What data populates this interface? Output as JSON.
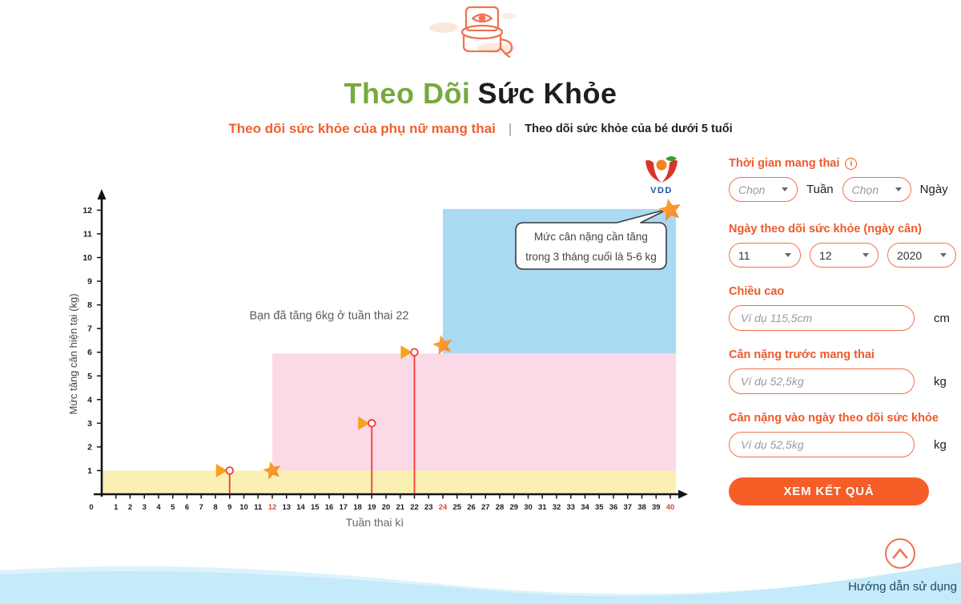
{
  "header": {
    "title_part1": "Theo Dõi",
    "title_part2": "Sức Khỏe",
    "tabs": [
      {
        "label": "Theo dõi sức khỏe của phụ nữ mang thai",
        "active": true
      },
      {
        "label": "Theo dõi sức khỏe của bé dưới 5 tuổi",
        "active": false
      }
    ],
    "tab_divider": "|"
  },
  "logo": {
    "text": "VDD"
  },
  "icons": {
    "info_glyph": "i"
  },
  "chart_data": {
    "type": "area",
    "xlabel": "Tuần thai kì",
    "ylabel": "Mức tăng cân hiện tại (kg)",
    "xlim": [
      0,
      40
    ],
    "ylim": [
      0,
      12
    ],
    "x_tick_step": 1,
    "y_tick_step": 1,
    "x_ticks_red": [
      12,
      24,
      40
    ],
    "bands": [
      {
        "name": "first-trimester-target",
        "weeks": [
          0,
          40.4
        ],
        "kg": [
          0,
          1.0
        ],
        "color": "#FAF0B4"
      },
      {
        "name": "second-trimester-target",
        "weeks": [
          12,
          40.4
        ],
        "kg": [
          1.0,
          5.95
        ],
        "color": "#FBD9E6"
      },
      {
        "name": "third-trimester-target",
        "weeks": [
          24,
          40.4
        ],
        "kg": [
          5.95,
          12.05
        ],
        "color": "#A9D9F3"
      }
    ],
    "progress_arrows": [
      {
        "kg": 1,
        "week": 9
      },
      {
        "kg": 3,
        "week": 19
      },
      {
        "kg": 6,
        "week": 22
      }
    ],
    "stars": [
      {
        "week": 12,
        "kg": 1,
        "size": 12
      },
      {
        "week": 24,
        "kg": 6.3,
        "size": 13
      },
      {
        "week": 40,
        "kg": 12,
        "size": 15
      }
    ],
    "annotation": {
      "text": "Bạn đã tăng 6kg ở tuần thai 22",
      "week": 16,
      "kg": 7.4
    },
    "tooltip": {
      "lines": [
        "Mức cân nặng cần tăng",
        "trong 3 tháng cuối là 5-6 kg"
      ],
      "points_to": {
        "week": 40,
        "kg": 12
      }
    },
    "colors": {
      "arrow_start": "#FFDC7E",
      "arrow_end": "#F7A11F",
      "marker_line": "#F23B2F",
      "star_light": "#FBAE3C",
      "star_dark": "#F58220",
      "tick_red": "#E8433A",
      "axis": "#141414"
    }
  },
  "form": {
    "fields": {
      "pregnancy_time": {
        "label": "Thời gian mang thai",
        "selects": [
          {
            "value": "Chọn",
            "after_label": "Tuần"
          },
          {
            "value": "Chọn",
            "after_label": "Ngày"
          }
        ]
      },
      "tracking_date": {
        "label": "Ngày theo dõi sức khỏe (ngày cân)",
        "selects": [
          {
            "value": "11"
          },
          {
            "value": "12"
          },
          {
            "value": "2020"
          }
        ]
      },
      "height": {
        "label": "Chiều cao",
        "placeholder": "Ví dụ 115,5cm",
        "unit": "cm"
      },
      "pre_pregnancy_weight": {
        "label": "Cân nặng trước mang thai",
        "placeholder": "Ví dụ 52,5kg",
        "unit": "kg"
      },
      "current_weight": {
        "label": "Cân nặng vào ngày theo dõi sức khỏe",
        "placeholder": "Ví dụ 52,5kg",
        "unit": "kg"
      }
    },
    "submit_label": "XEM KẾT QUẢ"
  },
  "footer": {
    "help_text": "Hướng dẫn sử dụng"
  }
}
